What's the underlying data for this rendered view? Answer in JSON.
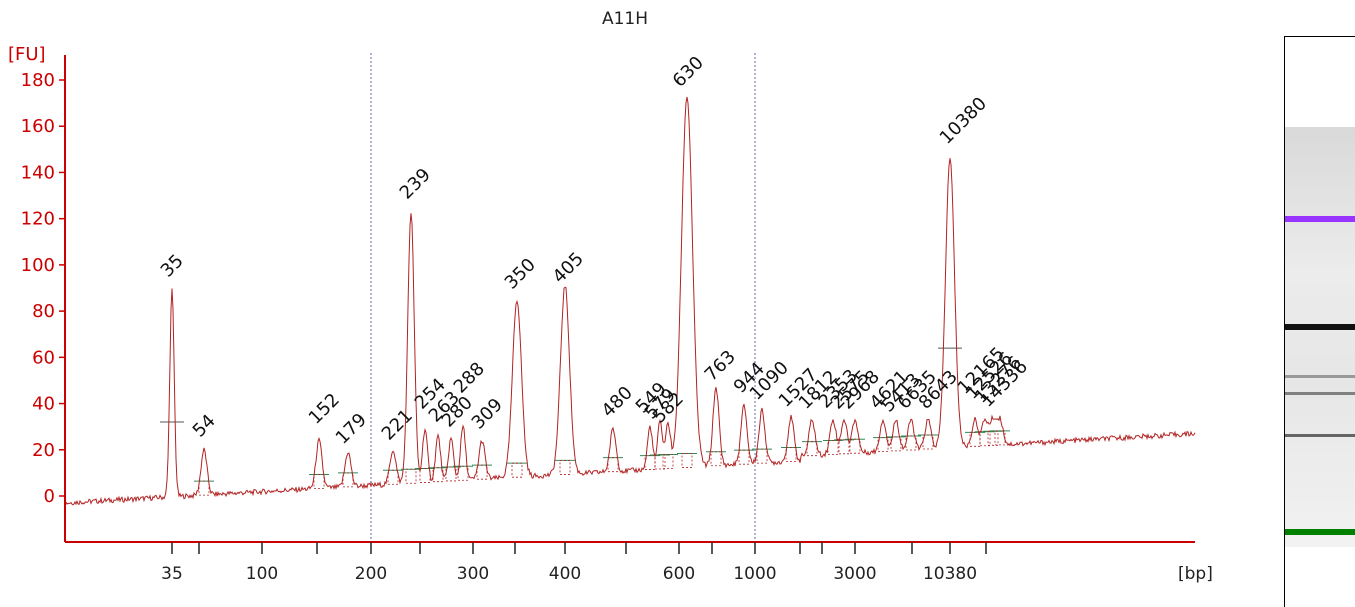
{
  "chart_data": {
    "type": "line",
    "title": "A11H",
    "ylabel": "[FU]",
    "xlabel": "[bp]",
    "ylim": [
      -20,
      185
    ],
    "y_ticks": [
      0,
      20,
      40,
      60,
      80,
      100,
      120,
      140,
      160,
      180
    ],
    "x_tick_labels": [
      "35",
      "100",
      "200",
      "300",
      "400",
      "600",
      "1000",
      "3000",
      "10380"
    ],
    "grid": false,
    "colors": {
      "trace": "#b22222",
      "axis": "#cc0000",
      "lower_marker": "#008000",
      "upper_marker": "#9933ff",
      "baseline": "#2e8b57"
    },
    "peaks": [
      {
        "label": "35",
        "height": 89,
        "color": "#008000"
      },
      {
        "label": "54",
        "height": 20
      },
      {
        "label": "152",
        "height": 24
      },
      {
        "label": "179",
        "height": 19
      },
      {
        "label": "221",
        "height": 20
      },
      {
        "label": "239",
        "height": 123
      },
      {
        "label": "254",
        "height": 29
      },
      {
        "label": "263",
        "height": 26
      },
      {
        "label": "280",
        "height": 25
      },
      {
        "label": "288",
        "height": 30
      },
      {
        "label": "309",
        "height": 24
      },
      {
        "label": "350",
        "height": 85
      },
      {
        "label": "405",
        "height": 91
      },
      {
        "label": "480",
        "height": 29
      },
      {
        "label": "549",
        "height": 30
      },
      {
        "label": "579",
        "height": 32
      },
      {
        "label": "582",
        "height": 31
      },
      {
        "label": "630",
        "height": 173
      },
      {
        "label": "763",
        "height": 47
      },
      {
        "label": "944",
        "height": 39
      },
      {
        "label": "1090",
        "height": 37
      },
      {
        "label": "1527",
        "height": 34
      },
      {
        "label": "1812",
        "height": 33
      },
      {
        "label": "2353",
        "height": 33
      },
      {
        "label": "2575",
        "height": 33
      },
      {
        "label": "2968",
        "height": 33
      },
      {
        "label": "4621",
        "height": 33
      },
      {
        "label": "5413",
        "height": 33
      },
      {
        "label": "6635",
        "height": 33
      },
      {
        "label": "8643",
        "height": 33
      },
      {
        "label": "10380",
        "height": 146,
        "color": "#9933ff"
      },
      {
        "label": "12165",
        "height": 33
      },
      {
        "label": "12526",
        "height": 33
      },
      {
        "label": "13276",
        "height": 33
      },
      {
        "label": "14336",
        "height": 33
      }
    ],
    "gel_bands": [
      {
        "position": 0.22,
        "color": "#9933ff",
        "strength": 1.0
      },
      {
        "position": 0.475,
        "color": "#111111",
        "strength": 1.0
      },
      {
        "position": 0.595,
        "color": "#666666",
        "strength": 0.6
      },
      {
        "position": 0.635,
        "color": "#555555",
        "strength": 0.7
      },
      {
        "position": 0.735,
        "color": "#444444",
        "strength": 0.8
      },
      {
        "position": 0.965,
        "color": "#008000",
        "strength": 1.0
      }
    ]
  }
}
